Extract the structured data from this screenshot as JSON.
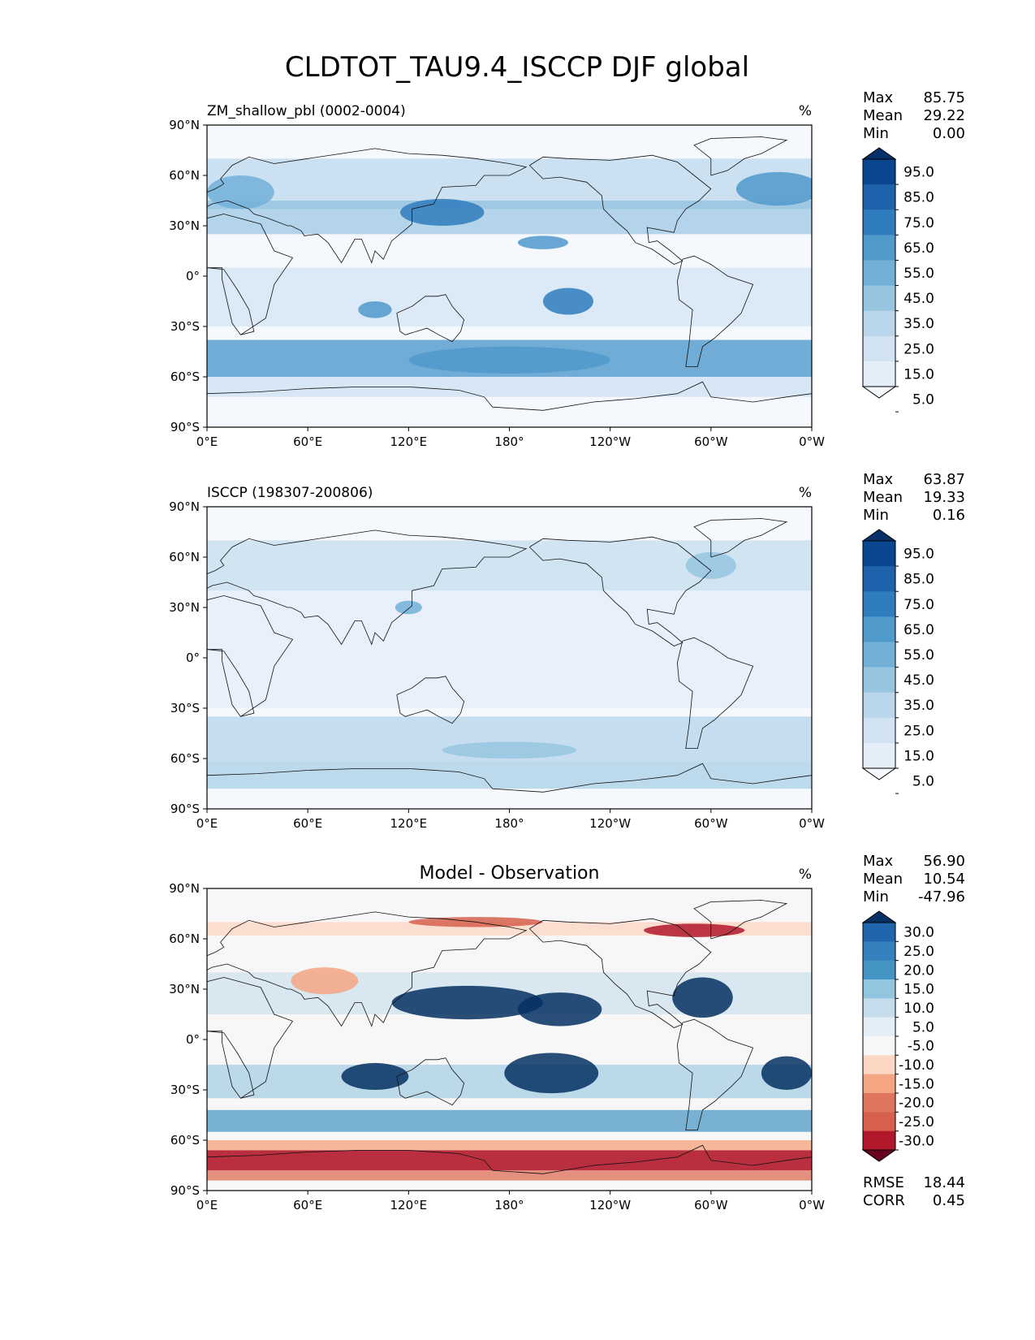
{
  "figure": {
    "title": "CLDTOT_TAU9.4_ISCCP DJF global"
  },
  "axes": {
    "lat_ticks": [
      "90°N",
      "60°N",
      "30°N",
      "0°",
      "30°S",
      "60°S",
      "90°S"
    ],
    "lon_ticks": [
      "0°E",
      "60°E",
      "120°E",
      "180°",
      "120°W",
      "60°W",
      "0°W"
    ]
  },
  "panels": [
    {
      "left_title": "ZM_shallow_pbl (0002-0004)",
      "center_title": "",
      "units": "%",
      "stats": [
        {
          "label": "Max",
          "value": "85.75"
        },
        {
          "label": "Mean",
          "value": "29.22"
        },
        {
          "label": "Min",
          "value": "0.00"
        }
      ],
      "extra_stats": [],
      "colorbar": {
        "labels": [
          "95.0",
          "85.0",
          "75.0",
          "65.0",
          "55.0",
          "45.0",
          "35.0",
          "25.0",
          "15.0",
          "5.0"
        ],
        "colors": [
          "#08306b",
          "#08468f",
          "#1d62aa",
          "#2f7dbd",
          "#4f99cb",
          "#72b0d8",
          "#97c5e0",
          "#b9d6ea",
          "#d1e2f3",
          "#e3eef9",
          "#f5f9fe"
        ]
      }
    },
    {
      "left_title": "ISCCP (198307-200806)",
      "center_title": "",
      "units": "%",
      "stats": [
        {
          "label": "Max",
          "value": "63.87"
        },
        {
          "label": "Mean",
          "value": "19.33"
        },
        {
          "label": "Min",
          "value": "0.16"
        }
      ],
      "extra_stats": [],
      "colorbar": {
        "labels": [
          "95.0",
          "85.0",
          "75.0",
          "65.0",
          "55.0",
          "45.0",
          "35.0",
          "25.0",
          "15.0",
          "5.0"
        ],
        "colors": [
          "#08306b",
          "#08468f",
          "#1d62aa",
          "#2f7dbd",
          "#4f99cb",
          "#72b0d8",
          "#97c5e0",
          "#b9d6ea",
          "#d1e2f3",
          "#e3eef9",
          "#f5f9fe"
        ]
      }
    },
    {
      "left_title": "",
      "center_title": "Model - Observation",
      "units": "%",
      "stats": [
        {
          "label": "Max",
          "value": "56.90"
        },
        {
          "label": "Mean",
          "value": "10.54"
        },
        {
          "label": "Min",
          "value": "-47.96"
        }
      ],
      "extra_stats": [
        {
          "label": "RMSE",
          "value": "18.44"
        },
        {
          "label": "CORR",
          "value": "0.45"
        }
      ],
      "colorbar": {
        "labels": [
          "30.0",
          "25.0",
          "20.0",
          "15.0",
          "10.0",
          "5.0",
          "-5.0",
          "-10.0",
          "-15.0",
          "-20.0",
          "-25.0",
          "-30.0"
        ],
        "colors": [
          "#053061",
          "#2166ac",
          "#3581be",
          "#4393c3",
          "#92c5de",
          "#c4dcec",
          "#e4eef6",
          "#f7f7f7",
          "#fbd7c4",
          "#f4a582",
          "#e0755f",
          "#d6604d",
          "#b2182b",
          "#67001f"
        ]
      }
    }
  ]
}
